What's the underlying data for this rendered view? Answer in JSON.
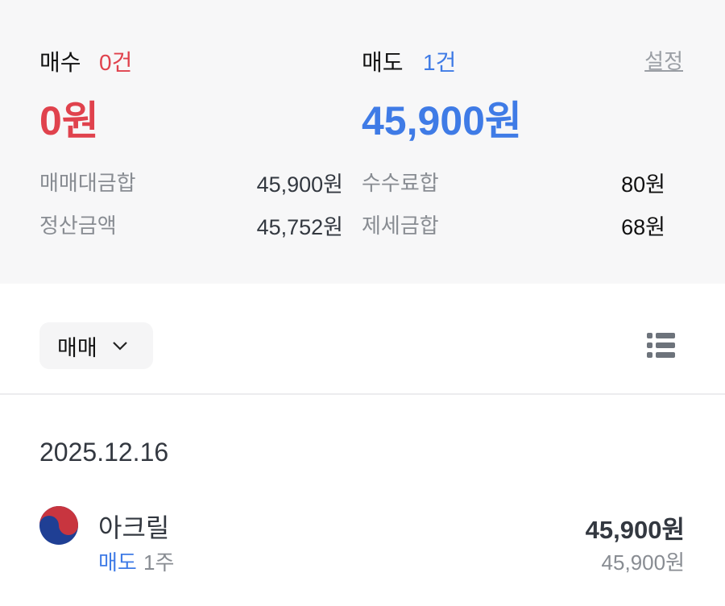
{
  "summary": {
    "buy": {
      "label": "매수",
      "count": "0건",
      "amount": "0원"
    },
    "sell": {
      "label": "매도",
      "count": "1건",
      "amount": "45,900원"
    },
    "settings_label": "설정",
    "rows": [
      {
        "label": "매매대금합",
        "value": "45,900원"
      },
      {
        "label": "수수료합",
        "value": "80원"
      },
      {
        "label": "정산금액",
        "value": "45,752원"
      },
      {
        "label": "제세금합",
        "value": "68원"
      }
    ]
  },
  "filter": {
    "selected": "매매",
    "icon": "chevron-down-icon"
  },
  "view_toggle_icon": "list-icon",
  "groups": [
    {
      "date": "2025.12.16",
      "items": [
        {
          "flag_icon": "korea-flag-icon",
          "name": "아크릴",
          "side": "매도",
          "quantity": "1주",
          "amount": "45,900원",
          "price": "45,900원"
        }
      ]
    }
  ],
  "colors": {
    "buy": "#e0424d",
    "sell": "#3f7be6",
    "summary_bg": "#f7f7f8"
  }
}
